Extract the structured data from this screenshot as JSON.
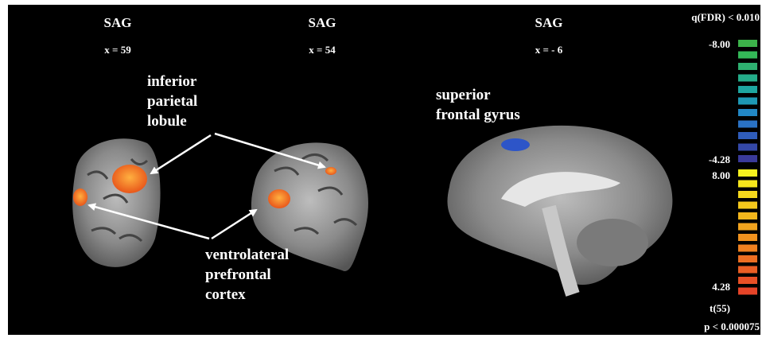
{
  "panels": [
    {
      "view": "SAG",
      "coordinate": "x = 59"
    },
    {
      "view": "SAG",
      "coordinate": "x = 54"
    },
    {
      "view": "SAG",
      "coordinate": "x = - 6"
    }
  ],
  "annotations": [
    {
      "lines": [
        "inferior",
        "parietal",
        "lobule"
      ]
    },
    {
      "lines": [
        "ventrolateral",
        "prefrontal",
        "cortex"
      ]
    },
    {
      "lines": [
        "superior",
        "frontal gyrus"
      ]
    }
  ],
  "colorbar": {
    "threshold": "q(FDR) < 0.010",
    "negative_max": "-8.00",
    "negative_min": "-4.28",
    "positive_max": "8.00",
    "positive_min": "4.28",
    "statistic": "t(55)",
    "p_value": "p < 0.000075"
  }
}
